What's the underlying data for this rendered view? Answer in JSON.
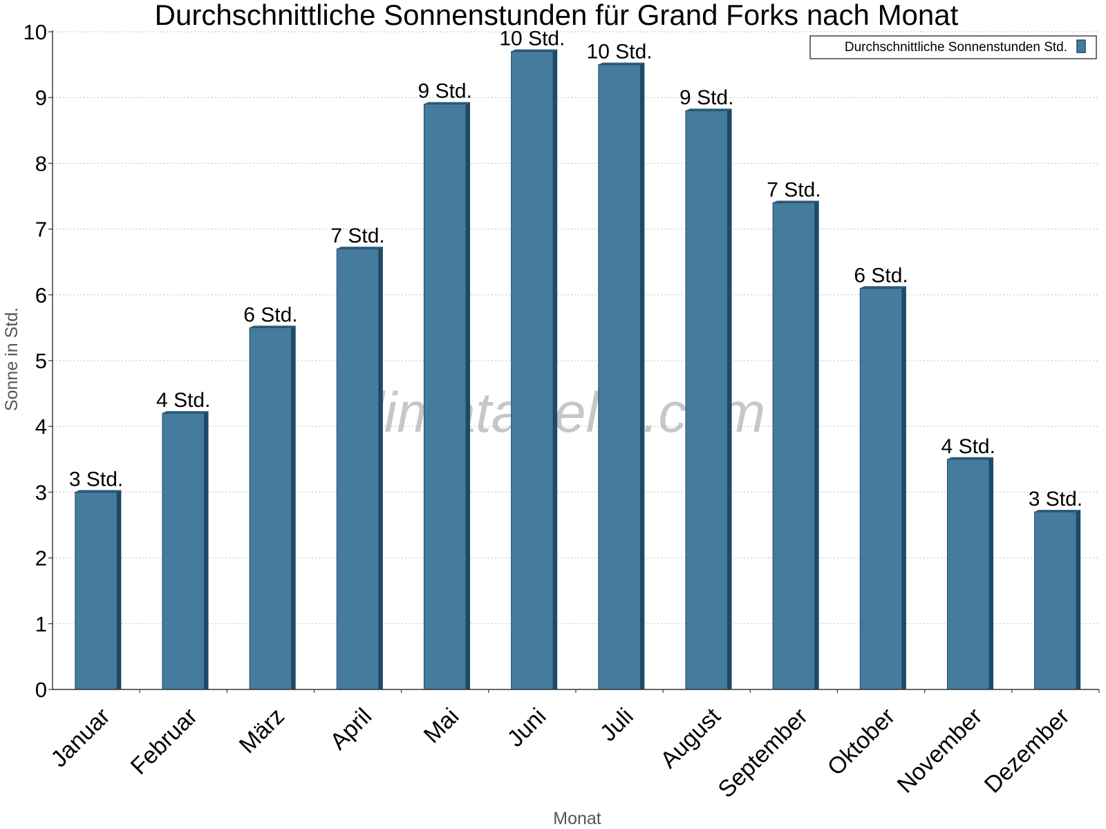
{
  "chart_data": {
    "type": "bar",
    "title": "Durchschnittliche Sonnenstunden für Grand Forks nach Monat",
    "xlabel": "Monat",
    "ylabel": "Sonne in Std.",
    "ylim": [
      0,
      10
    ],
    "yticks": [
      0,
      1,
      2,
      3,
      4,
      5,
      6,
      7,
      8,
      9,
      10
    ],
    "grid": true,
    "legend_position": "top-right",
    "watermark": "klimatabelle.com",
    "categories": [
      "Januar",
      "Februar",
      "März",
      "April",
      "Mai",
      "Juni",
      "Juli",
      "August",
      "September",
      "Oktober",
      "November",
      "Dezember"
    ],
    "series": [
      {
        "name": "Durchschnittliche Sonnenstunden Std.",
        "color": "#457b9d",
        "values": [
          3.0,
          4.2,
          5.5,
          6.7,
          8.9,
          9.7,
          9.5,
          8.8,
          7.4,
          6.1,
          3.5,
          2.7
        ],
        "labels": [
          "3 Std.",
          "4 Std.",
          "6 Std.",
          "7 Std.",
          "9 Std.",
          "10 Std.",
          "10 Std.",
          "9 Std.",
          "7 Std.",
          "6 Std.",
          "4 Std.",
          "3 Std."
        ]
      }
    ]
  }
}
